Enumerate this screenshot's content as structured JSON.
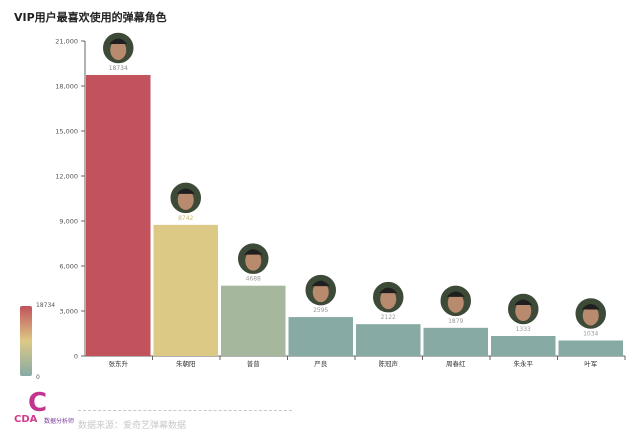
{
  "title": "VIP用户最喜欢使用的弹幕角色",
  "chart_data": {
    "type": "bar",
    "categories": [
      "张东升",
      "朱朝阳",
      "普普",
      "严良",
      "陈冠声",
      "周春红",
      "朱永平",
      "叶军"
    ],
    "values": [
      18734,
      8742,
      4688,
      2595,
      2122,
      1879,
      1333,
      1034
    ],
    "ylim": [
      0,
      21000
    ],
    "yticks": [
      0,
      3000,
      6000,
      9000,
      12000,
      15000,
      18000,
      21000
    ],
    "ytick_labels": [
      "0",
      "3,000",
      "6,000",
      "9,000",
      "12,000",
      "15,000",
      "18,000",
      "21,000"
    ],
    "grid": false,
    "colors": [
      "#c2525c",
      "#dcc985",
      "#a5b79c",
      "#87aaa4",
      "#87aaa4",
      "#87aaa4",
      "#87aaa4",
      "#87aaa4"
    ],
    "label_colors": [
      "#888888",
      "#c9b96a",
      "#999999",
      "#999999",
      "#999999",
      "#999999",
      "#999999",
      "#999999"
    ],
    "legend": {
      "max_label": "18734",
      "min_label": "0",
      "placement": "bottom-left"
    }
  },
  "source_text": "数据来源：爱奇艺弹幕数据",
  "logo": {
    "mark": "C",
    "text": "CDA",
    "sub": "数据分析师"
  }
}
